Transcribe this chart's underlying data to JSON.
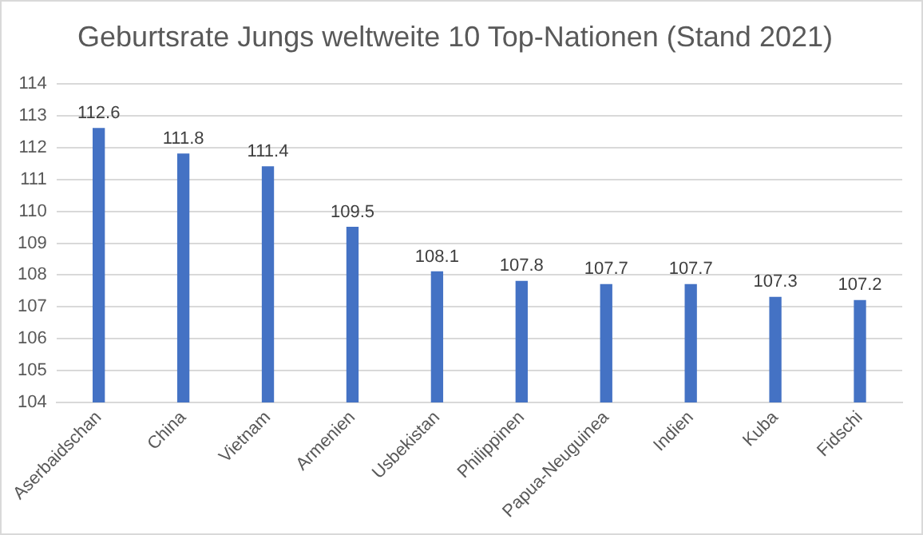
{
  "chart_data": {
    "type": "bar",
    "title": "Geburtsrate Jungs weltweite 10 Top-Nationen (Stand 2021)",
    "categories": [
      "Aserbaidschan",
      "China",
      "Vietnam",
      "Armenien",
      "Usbekistan",
      "Philippinen",
      "Papua-Neuguinea",
      "Indien",
      "Kuba",
      "Fidschi"
    ],
    "values": [
      112.6,
      111.8,
      111.4,
      109.5,
      108.1,
      107.8,
      107.7,
      107.7,
      107.3,
      107.2
    ],
    "color": "#4472c4",
    "ylim": [
      104,
      114
    ],
    "yticks": [
      104,
      105,
      106,
      107,
      108,
      109,
      110,
      111,
      112,
      113,
      114
    ],
    "grid": "y",
    "data_labels": true
  }
}
